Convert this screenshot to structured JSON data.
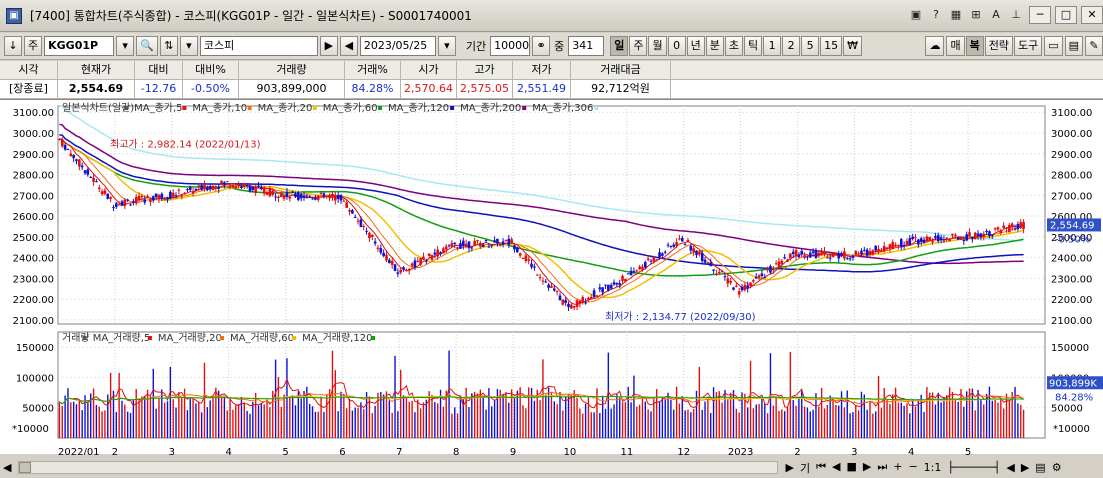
{
  "window": {
    "title": "[7400] 통합차트(주식종합) - 코스피(KGG01P - 일간 - 일본식차트) - S0001740001",
    "toolbar_icons": [
      "image-icon",
      "help-icon",
      "grid-icon",
      "tree-icon",
      "font-icon",
      "pin-icon"
    ],
    "minimize": "─",
    "maximize": "□",
    "close": "✕"
  },
  "toolbar": {
    "arrow": "↓",
    "market": "주",
    "code": "KGG01P",
    "name": "코스피",
    "date": "2023/05/25",
    "period_label": "기간",
    "period_value": "10000",
    "count_label": "중",
    "count_value": "341",
    "intervals": [
      "일",
      "주",
      "월",
      "0",
      "년",
      "분",
      "초",
      "틱",
      "1",
      "2",
      "5",
      "15",
      "₩"
    ],
    "active_interval": "일",
    "right_buttons": [
      "매",
      "복",
      "전략",
      "도구"
    ],
    "active_right": "복"
  },
  "quote": {
    "headers": [
      "시각",
      "현재가",
      "대비",
      "대비%",
      "거래량",
      "거래%",
      "시가",
      "고가",
      "저가",
      "거래대금"
    ],
    "values": [
      "[장종료]",
      "2,554.69",
      "-12.76",
      "-0.50%",
      "903,899,000",
      "84.28%",
      "2,570.64",
      "2,575.05",
      "2,551.49",
      "92,712억원"
    ]
  },
  "price_panel": {
    "legend": [
      "일본식차트(일간)",
      "MA_종가,5",
      "MA_종가,10",
      "MA_종가,20",
      "MA_종가,60",
      "MA_종가,120",
      "MA_종가,200",
      "MA_종가,306"
    ],
    "max_label": "최고가 : 2,982.14 (2022/01/13)",
    "min_label": "최저가 : 2,134.77 (2022/09/30)",
    "current": "2,554.69",
    "change": "-0.50%",
    "ticks": [
      "3100.00",
      "3000.00",
      "2900.00",
      "2800.00",
      "2700.00",
      "2600.00",
      "2500.00",
      "2400.00",
      "2300.00",
      "2200.00",
      "2100.00"
    ],
    "colors": {
      "up": "#e01010",
      "down": "#1010d0",
      "ma5": "#e01010",
      "ma10": "#f07010",
      "ma20": "#f0c000",
      "ma60": "#10a010",
      "ma120": "#1010c0",
      "ma200": "#800080",
      "ma306": "#a8e8f0"
    }
  },
  "volume_panel": {
    "legend": [
      "거래량",
      "MA_거래량,5",
      "MA_거래량,20",
      "MA_거래량,60",
      "MA_거래량,120"
    ],
    "ticks": [
      "150000",
      "100000",
      "50000"
    ],
    "unit": "*10000",
    "current": "903,899K",
    "pct": "84.28%"
  },
  "xaxis": [
    "2022/01",
    "2",
    "3",
    "4",
    "5",
    "6",
    "7",
    "8",
    "9",
    "10",
    "11",
    "12",
    "2023",
    "2",
    "3",
    "4",
    "5"
  ],
  "bottom": {
    "zoom": "1:1",
    "buttons": [
      "기",
      "⏮",
      "◀",
      "■",
      "▶",
      "⏭",
      "+",
      "−"
    ]
  },
  "chart_data": {
    "type": "candlestick",
    "x": [
      "2022/01",
      "2022/02",
      "2022/03",
      "2022/04",
      "2022/05",
      "2022/06",
      "2022/07",
      "2022/08",
      "2022/09",
      "2022/10",
      "2022/11",
      "2022/12",
      "2023/01",
      "2023/02",
      "2023/03",
      "2023/04",
      "2023/05"
    ],
    "monthly_close": [
      2660,
      2700,
      2760,
      2700,
      2690,
      2330,
      2460,
      2475,
      2160,
      2300,
      2490,
      2240,
      2420,
      2410,
      2480,
      2500,
      2555
    ],
    "ylim": [
      2080,
      3130
    ],
    "high": 2982.14,
    "low": 2134.77,
    "last_close": 2554.69,
    "last_volume": 903899000,
    "volume_ylim": [
      0,
      175000
    ],
    "volume_unit": "*10000"
  }
}
